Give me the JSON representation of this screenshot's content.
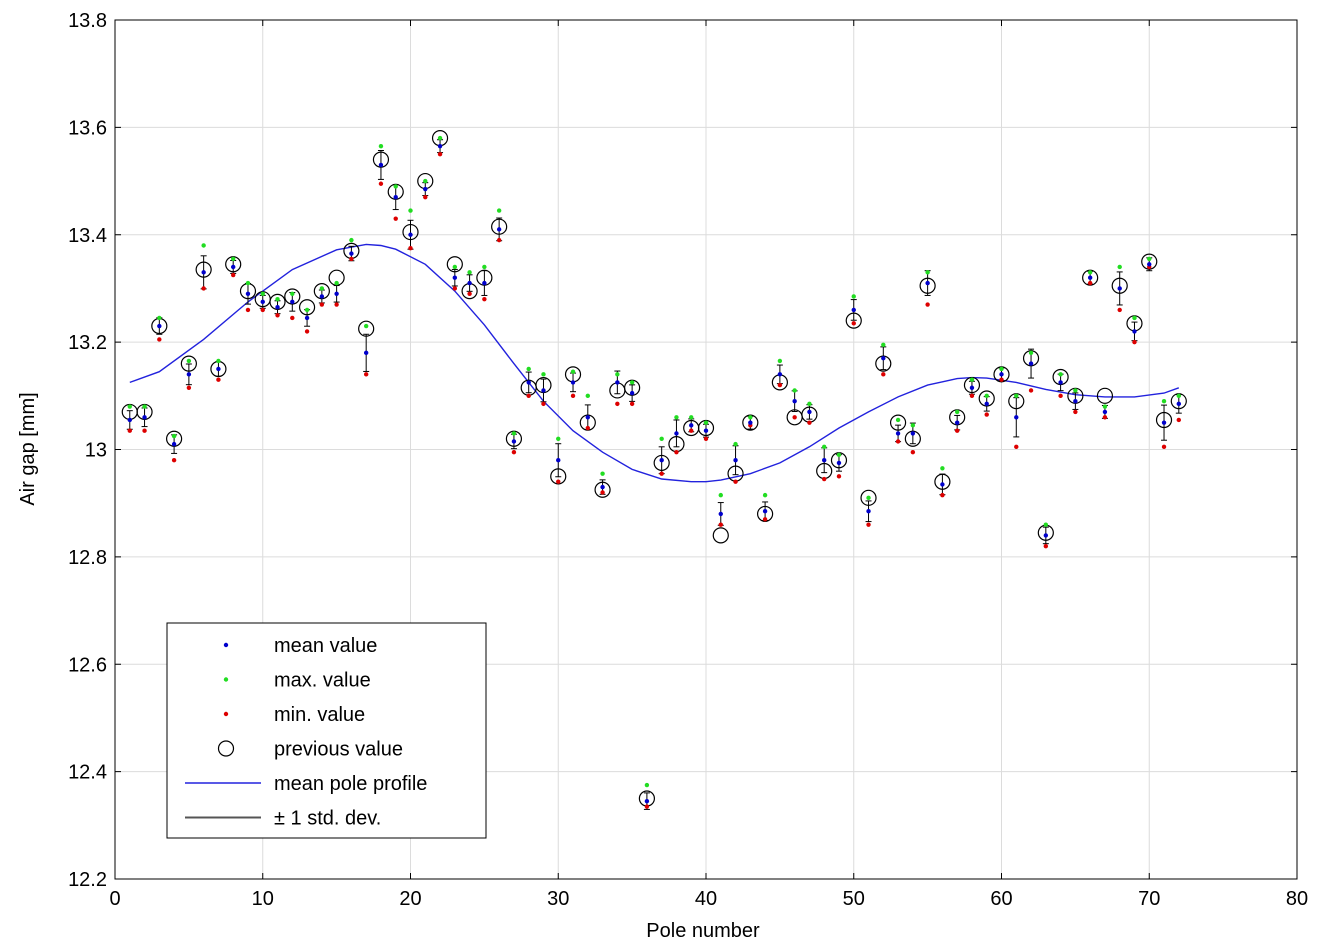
{
  "chart_data": {
    "type": "scatter",
    "title": "",
    "xlabel": "Pole number",
    "ylabel": "Air gap [mm]",
    "xlim": [
      0,
      80
    ],
    "ylim": [
      12.2,
      13.8
    ],
    "xticks": [
      0,
      10,
      20,
      30,
      40,
      50,
      60,
      70,
      80
    ],
    "yticks": [
      12.2,
      12.4,
      12.6,
      12.8,
      13,
      13.2,
      13.4,
      13.6,
      13.8
    ],
    "ytick_labels": [
      "12.2",
      "12.4",
      "12.6",
      "12.8",
      "13",
      "13.2",
      "13.4",
      "13.6",
      "13.8"
    ],
    "grid": true,
    "legend_position": "bottom-left",
    "colors": {
      "mean": "#0000cc",
      "max": "#22dd22",
      "min": "#dd0000",
      "previous": "#000000",
      "profile": "#2222dd",
      "stddev": "#555555"
    },
    "legend": [
      {
        "key": "mean",
        "label": "mean value",
        "marker": "dot"
      },
      {
        "key": "max",
        "label": "max. value",
        "marker": "dot"
      },
      {
        "key": "min",
        "label": "min. value",
        "marker": "dot"
      },
      {
        "key": "previous",
        "label": "previous value",
        "marker": "circle"
      },
      {
        "key": "profile",
        "label": "mean pole profile",
        "marker": "line"
      },
      {
        "key": "stddev",
        "label": "± 1 std. dev.",
        "marker": "line"
      }
    ],
    "x": [
      1,
      2,
      3,
      4,
      5,
      6,
      7,
      8,
      9,
      10,
      11,
      12,
      13,
      14,
      15,
      16,
      17,
      18,
      19,
      20,
      21,
      22,
      23,
      24,
      25,
      26,
      27,
      28,
      29,
      30,
      31,
      32,
      33,
      34,
      35,
      36,
      37,
      38,
      39,
      40,
      41,
      42,
      43,
      44,
      45,
      46,
      47,
      48,
      49,
      50,
      51,
      52,
      53,
      54,
      55,
      56,
      57,
      58,
      59,
      60,
      61,
      62,
      63,
      64,
      65,
      66,
      67,
      68,
      69,
      70,
      71,
      72
    ],
    "series": [
      {
        "key": "mean",
        "name": "mean value",
        "values": [
          13.055,
          13.06,
          13.23,
          13.01,
          13.14,
          13.33,
          13.15,
          13.34,
          13.29,
          13.275,
          13.265,
          13.275,
          13.245,
          13.285,
          13.29,
          13.365,
          13.18,
          13.53,
          13.47,
          13.4,
          13.485,
          13.565,
          13.32,
          13.31,
          13.31,
          13.41,
          13.015,
          13.125,
          13.11,
          12.98,
          13.125,
          13.06,
          12.93,
          13.125,
          13.105,
          12.345,
          12.98,
          13.03,
          13.045,
          13.035,
          12.88,
          12.98,
          13.05,
          12.885,
          13.14,
          13.09,
          13.07,
          12.98,
          12.975,
          13.26,
          12.885,
          13.17,
          13.03,
          13.03,
          13.31,
          12.935,
          13.05,
          13.115,
          13.085,
          13.14,
          13.06,
          13.16,
          12.84,
          13.125,
          13.09,
          13.32,
          13.07,
          13.3,
          13.22,
          13.345,
          13.05,
          13.085
        ]
      },
      {
        "key": "max",
        "name": "max. value",
        "values": [
          13.08,
          13.08,
          13.245,
          13.025,
          13.165,
          13.38,
          13.165,
          13.355,
          13.31,
          13.29,
          13.28,
          13.29,
          13.26,
          13.3,
          13.31,
          13.39,
          13.23,
          13.565,
          13.49,
          13.445,
          13.5,
          13.58,
          13.34,
          13.33,
          13.34,
          13.445,
          13.03,
          13.15,
          13.14,
          13.02,
          13.145,
          13.1,
          12.955,
          13.14,
          13.125,
          12.375,
          13.02,
          13.06,
          13.06,
          13.05,
          12.915,
          13.01,
          13.06,
          12.915,
          13.165,
          13.11,
          13.085,
          13.005,
          12.99,
          13.285,
          12.91,
          13.195,
          13.055,
          13.045,
          13.33,
          12.965,
          13.07,
          13.13,
          13.1,
          13.15,
          13.1,
          13.18,
          12.86,
          13.14,
          13.11,
          13.33,
          13.08,
          13.34,
          13.245,
          13.355,
          13.09,
          13.1
        ]
      },
      {
        "key": "min",
        "name": "min. value",
        "values": [
          13.035,
          13.035,
          13.205,
          12.98,
          13.115,
          13.3,
          13.13,
          13.325,
          13.26,
          13.26,
          13.25,
          13.245,
          13.22,
          13.27,
          13.27,
          13.355,
          13.14,
          13.495,
          13.43,
          13.375,
          13.47,
          13.55,
          13.3,
          13.29,
          13.28,
          13.39,
          12.995,
          13.1,
          13.085,
          12.94,
          13.1,
          13.04,
          12.92,
          13.085,
          13.085,
          12.335,
          12.955,
          12.995,
          13.035,
          13.02,
          12.86,
          12.94,
          13.045,
          12.87,
          13.12,
          13.06,
          13.05,
          12.945,
          12.95,
          13.235,
          12.86,
          13.14,
          13.015,
          12.995,
          13.27,
          12.915,
          13.035,
          13.1,
          13.065,
          13.13,
          13.005,
          13.11,
          12.82,
          13.1,
          13.07,
          13.31,
          13.06,
          13.26,
          13.2,
          13.34,
          13.005,
          13.055
        ]
      },
      {
        "key": "previous",
        "name": "previous value",
        "values": [
          13.07,
          13.07,
          13.23,
          13.02,
          13.16,
          13.335,
          13.15,
          13.345,
          13.295,
          13.28,
          13.275,
          13.285,
          13.265,
          13.295,
          13.32,
          13.37,
          13.225,
          13.54,
          13.48,
          13.405,
          13.5,
          13.58,
          13.345,
          13.295,
          13.32,
          13.415,
          13.02,
          13.115,
          13.12,
          12.95,
          13.14,
          13.05,
          12.925,
          13.11,
          13.115,
          12.35,
          12.975,
          13.01,
          13.04,
          13.04,
          12.84,
          12.955,
          13.05,
          12.88,
          13.125,
          13.06,
          13.065,
          12.96,
          12.98,
          13.24,
          12.91,
          13.16,
          13.05,
          13.02,
          13.305,
          12.94,
          13.06,
          13.12,
          13.095,
          13.14,
          13.09,
          13.17,
          12.845,
          13.135,
          13.1,
          13.32,
          13.1,
          13.305,
          13.235,
          13.35,
          13.055,
          13.09
        ]
      }
    ],
    "profile": {
      "key": "profile",
      "x": [
        1,
        3,
        6,
        9,
        12,
        15,
        17,
        18,
        19,
        21,
        23,
        25,
        27,
        29,
        31,
        33,
        35,
        37,
        39,
        40,
        41,
        43,
        45,
        47,
        49,
        51,
        53,
        55,
        57,
        58,
        59,
        61,
        63,
        65,
        67,
        69,
        71,
        72
      ],
      "values": [
        13.125,
        13.145,
        13.205,
        13.275,
        13.335,
        13.372,
        13.382,
        13.38,
        13.373,
        13.345,
        13.295,
        13.232,
        13.16,
        13.09,
        13.035,
        12.995,
        12.963,
        12.945,
        12.94,
        12.94,
        12.943,
        12.955,
        12.975,
        13.005,
        13.04,
        13.07,
        13.098,
        13.12,
        13.132,
        13.134,
        13.133,
        13.125,
        13.112,
        13.102,
        13.098,
        13.098,
        13.105,
        13.115
      ]
    }
  }
}
